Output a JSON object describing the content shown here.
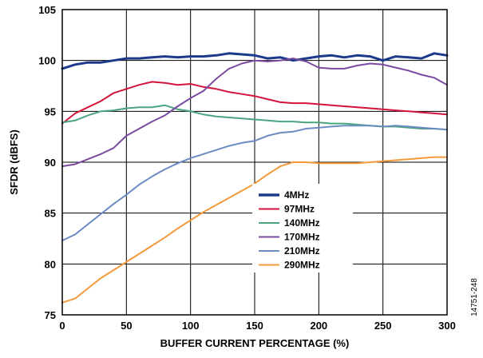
{
  "chart_data": {
    "type": "line",
    "title": "",
    "xlabel": "BUFFER CURRENT PERCENTAGE (%)",
    "ylabel": "SFDR (dBFS)",
    "xlim": [
      0,
      300
    ],
    "ylim": [
      75,
      105
    ],
    "xticks": [
      "0",
      "50",
      "100",
      "150",
      "200",
      "250",
      "300"
    ],
    "yticks": [
      "75",
      "80",
      "85",
      "90",
      "95",
      "100",
      "105"
    ],
    "grid": true,
    "legend_position": "lower-center",
    "figure_id": "14751-248",
    "x": [
      0,
      10,
      20,
      30,
      40,
      50,
      60,
      70,
      80,
      90,
      100,
      110,
      120,
      130,
      140,
      150,
      160,
      170,
      180,
      190,
      200,
      210,
      220,
      230,
      240,
      250,
      260,
      270,
      280,
      290,
      300
    ],
    "series": [
      {
        "name": "4MHz",
        "color": "#1b3a8c",
        "values": [
          99.2,
          99.6,
          99.8,
          99.8,
          100.0,
          100.2,
          100.2,
          100.3,
          100.4,
          100.3,
          100.4,
          100.4,
          100.5,
          100.7,
          100.6,
          100.5,
          100.2,
          100.3,
          100.0,
          100.2,
          100.4,
          100.5,
          100.3,
          100.5,
          100.4,
          100.0,
          100.4,
          100.3,
          100.2,
          100.7,
          100.5
        ]
      },
      {
        "name": "97MHz",
        "color": "#d2143a",
        "values": [
          93.8,
          94.8,
          95.4,
          96.0,
          96.8,
          97.2,
          97.6,
          97.9,
          97.8,
          97.6,
          97.7,
          97.4,
          97.2,
          96.9,
          96.7,
          96.5,
          96.2,
          95.9,
          95.8,
          95.8,
          95.7,
          95.6,
          95.5,
          95.4,
          95.3,
          95.2,
          95.1,
          95.0,
          94.9,
          94.8,
          94.7
        ]
      },
      {
        "name": "140MHz",
        "color": "#4aa57e",
        "values": [
          93.9,
          94.1,
          94.6,
          95.0,
          95.1,
          95.3,
          95.4,
          95.4,
          95.6,
          95.2,
          95.0,
          94.7,
          94.5,
          94.4,
          94.3,
          94.2,
          94.1,
          94.0,
          94.0,
          93.9,
          93.9,
          93.8,
          93.8,
          93.7,
          93.6,
          93.5,
          93.5,
          93.4,
          93.3,
          93.3,
          93.2
        ]
      },
      {
        "name": "170MHz",
        "color": "#7a4aa0",
        "values": [
          89.6,
          89.8,
          90.3,
          90.8,
          91.4,
          92.6,
          93.3,
          94.0,
          94.6,
          95.5,
          96.3,
          97.0,
          98.2,
          99.2,
          99.7,
          100.0,
          99.9,
          100.0,
          100.2,
          99.9,
          99.3,
          99.2,
          99.2,
          99.5,
          99.7,
          99.6,
          99.3,
          99.0,
          98.6,
          98.3,
          97.6
        ]
      },
      {
        "name": "210MHz",
        "color": "#6b8cc2",
        "values": [
          82.3,
          82.9,
          83.9,
          84.9,
          85.9,
          86.8,
          87.8,
          88.6,
          89.3,
          89.9,
          90.4,
          90.8,
          91.2,
          91.6,
          91.9,
          92.1,
          92.6,
          92.9,
          93.0,
          93.3,
          93.4,
          93.5,
          93.6,
          93.6,
          93.6,
          93.5,
          93.6,
          93.5,
          93.4,
          93.3,
          93.2
        ]
      },
      {
        "name": "290MHz",
        "color": "#f49a3c",
        "values": [
          76.2,
          76.6,
          77.6,
          78.6,
          79.4,
          80.2,
          81.0,
          81.8,
          82.6,
          83.5,
          84.3,
          85.1,
          85.8,
          86.5,
          87.2,
          87.9,
          88.8,
          89.6,
          90.0,
          90.0,
          89.9,
          89.9,
          89.9,
          89.9,
          90.0,
          90.1,
          90.2,
          90.3,
          90.4,
          90.5,
          90.5
        ]
      }
    ]
  }
}
